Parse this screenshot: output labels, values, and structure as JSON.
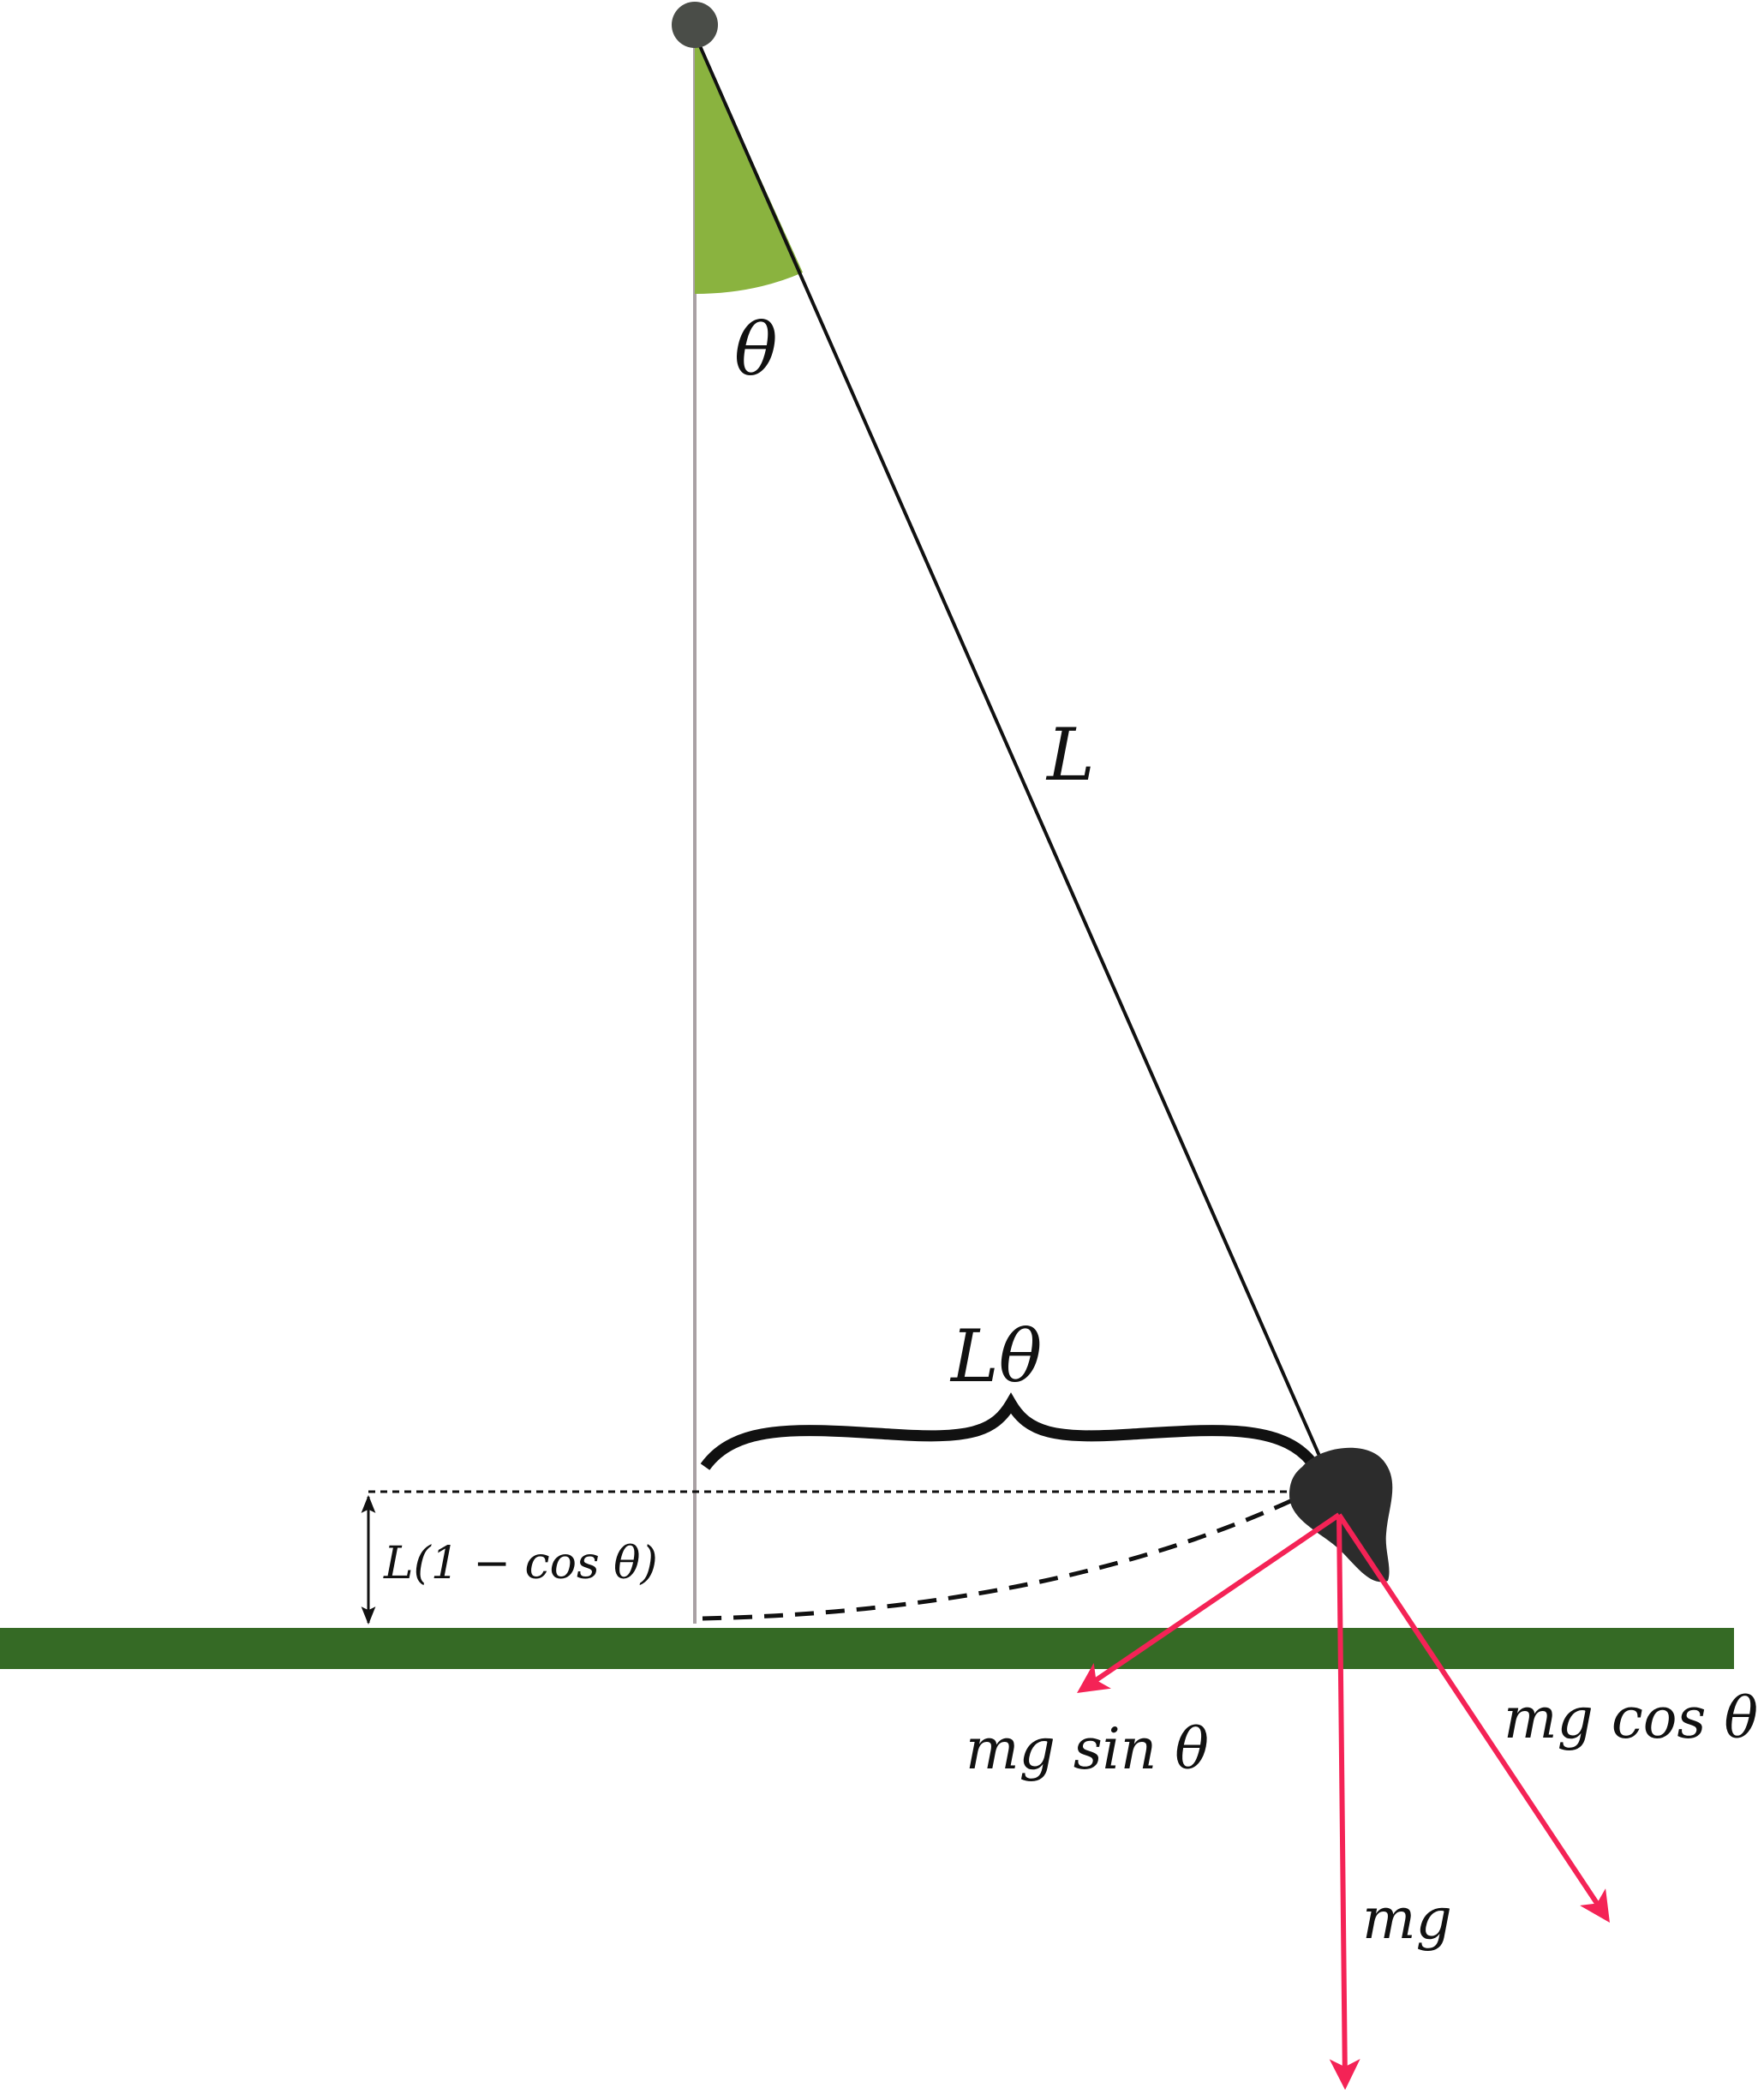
{
  "labels": {
    "theta": "θ",
    "length": "L",
    "arc": "Lθ",
    "height": "L(1 − cos θ)",
    "tangential_force": "mg sin θ",
    "normal_force": "mg cos θ",
    "weight": "mg"
  },
  "colors": {
    "background": "#ffffff",
    "ground": "#356a25",
    "angle_wedge": "#8ab33f",
    "vertical_line": "#a9a1a4",
    "pivot": "#4a4d48",
    "string": "#111111",
    "bob": "#2c2c2c",
    "force_arrows": "#f42356",
    "dim_lines": "#111111"
  }
}
